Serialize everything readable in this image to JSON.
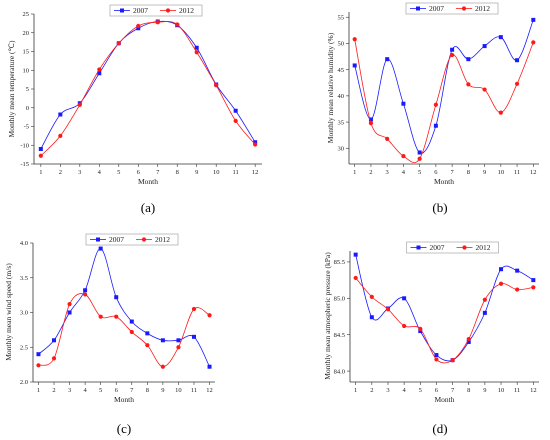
{
  "chart_data": [
    {
      "type": "line",
      "panel_label": "(a)",
      "xlabel": "Month",
      "ylabel": "Monthly mean temperature (℃)",
      "x": [
        1,
        2,
        3,
        4,
        5,
        6,
        7,
        8,
        9,
        10,
        11,
        12
      ],
      "ylim": [
        -15,
        25
      ],
      "yticks": [
        -15,
        -10,
        -5,
        0,
        5,
        10,
        15,
        20,
        25
      ],
      "legend_position": "top-center",
      "series": [
        {
          "name": "2007",
          "color": "#1a1aff",
          "marker": "square",
          "values": [
            -11,
            -1.8,
            1.2,
            9.2,
            17.2,
            21.2,
            23,
            22,
            16,
            6.2,
            -0.8,
            -9.2
          ]
        },
        {
          "name": "2012",
          "color": "#ff1a1a",
          "marker": "circle",
          "values": [
            -12.8,
            -7.5,
            0.8,
            10.2,
            17.2,
            21.8,
            22.8,
            22.2,
            14.8,
            6,
            -3.5,
            -9.8
          ]
        }
      ]
    },
    {
      "type": "line",
      "panel_label": "(b)",
      "xlabel": "Month",
      "ylabel": "Monthly mean relative humidity (%)",
      "x": [
        1,
        2,
        3,
        4,
        5,
        6,
        7,
        8,
        9,
        10,
        11,
        12
      ],
      "ylim": [
        27,
        56
      ],
      "yticks": [
        30,
        35,
        40,
        45,
        50,
        55
      ],
      "legend_position": "top-center",
      "series": [
        {
          "name": "2007",
          "color": "#1a1aff",
          "marker": "square",
          "values": [
            45.8,
            35.5,
            47,
            38.5,
            29.2,
            34.3,
            48.8,
            47,
            49.5,
            51.2,
            46.8,
            54.5
          ]
        },
        {
          "name": "2012",
          "color": "#ff1a1a",
          "marker": "circle",
          "values": [
            50.8,
            34.8,
            31.8,
            28.5,
            28,
            38.3,
            47.8,
            42.2,
            41.2,
            36.8,
            42.3,
            50.2
          ]
        }
      ]
    },
    {
      "type": "line",
      "panel_label": "(c)",
      "xlabel": "Month",
      "ylabel": "Monthly mean wind speed (m/s)",
      "x": [
        1,
        2,
        3,
        4,
        5,
        6,
        7,
        8,
        9,
        10,
        11,
        12
      ],
      "ylim": [
        2.0,
        4.0
      ],
      "yticks": [
        2.0,
        2.5,
        3.0,
        3.5,
        4.0
      ],
      "ytick_labels": [
        "2.0",
        "2.5",
        "3.0",
        "3.5",
        "4.0"
      ],
      "legend_position": "top-center",
      "series": [
        {
          "name": "2007",
          "color": "#1a1aff",
          "marker": "square",
          "values": [
            2.4,
            2.6,
            3.0,
            3.32,
            3.92,
            3.22,
            2.87,
            2.7,
            2.6,
            2.6,
            2.65,
            2.22
          ]
        },
        {
          "name": "2012",
          "color": "#ff1a1a",
          "marker": "circle",
          "values": [
            2.24,
            2.34,
            3.12,
            3.26,
            2.94,
            2.94,
            2.72,
            2.53,
            2.22,
            2.5,
            3.05,
            2.96
          ]
        }
      ]
    },
    {
      "type": "line",
      "panel_label": "(d)",
      "xlabel": "Month",
      "ylabel": "Monthly mean atmospheric pressure (kPa)",
      "x": [
        1,
        2,
        3,
        4,
        5,
        6,
        7,
        8,
        9,
        10,
        11,
        12
      ],
      "ylim": [
        83.85,
        85.65
      ],
      "yticks": [
        84.0,
        84.5,
        85.0,
        85.5
      ],
      "ytick_labels": [
        "84.0",
        "84.5",
        "85.0",
        "85.5"
      ],
      "legend_position": "top-center",
      "series": [
        {
          "name": "2007",
          "color": "#1a1aff",
          "marker": "square",
          "values": [
            85.6,
            84.74,
            84.86,
            85.0,
            84.55,
            84.22,
            84.15,
            84.4,
            84.8,
            85.4,
            85.38,
            85.25
          ]
        },
        {
          "name": "2012",
          "color": "#ff1a1a",
          "marker": "circle",
          "values": [
            85.28,
            85.02,
            84.85,
            84.62,
            84.58,
            84.16,
            84.15,
            84.44,
            84.98,
            85.2,
            85.12,
            85.15
          ]
        }
      ]
    }
  ]
}
